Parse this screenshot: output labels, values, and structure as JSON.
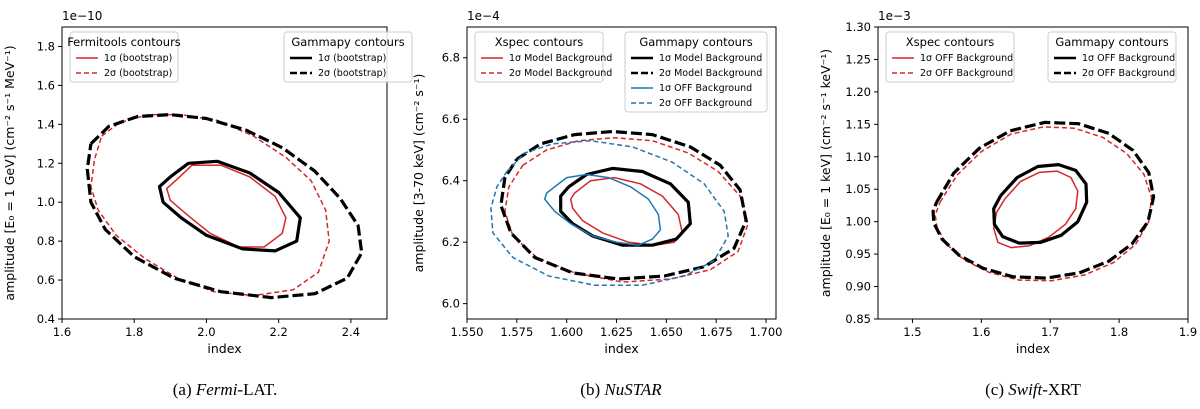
{
  "chart_data": [
    {
      "type": "line",
      "caption": {
        "label": "(a) ",
        "em": "Fermi",
        "rest": "-LAT."
      },
      "offset_text": "1e−10",
      "xlabel": "index",
      "ylabel": "amplitude [E₀ = 1 GeV] (cm⁻² s⁻¹ MeV⁻¹)",
      "xlim": [
        1.6,
        2.5
      ],
      "ylim": [
        0.4,
        1.9
      ],
      "xticks": [
        1.6,
        1.8,
        2.0,
        2.2,
        2.4
      ],
      "xticklabels": [
        "1.6",
        "1.8",
        "2.0",
        "2.2",
        "2.4"
      ],
      "yticks": [
        0.4,
        0.6,
        0.8,
        1.0,
        1.2,
        1.4,
        1.6,
        1.8
      ],
      "yticklabels": [
        "0.4",
        "0.6",
        "0.8",
        "1.0",
        "1.2",
        "1.4",
        "1.6",
        "1.8"
      ],
      "legends": [
        {
          "title": "Fermitools contours",
          "position": "top-left",
          "items": [
            {
              "label": "1σ (bootstrap)",
              "color": "#d62728",
              "dash": false,
              "weight": "thin"
            },
            {
              "label": "2σ (bootstrap)",
              "color": "#d62728",
              "dash": true,
              "weight": "thin"
            }
          ]
        },
        {
          "title": "Gammapy contours",
          "position": "top-right",
          "items": [
            {
              "label": "1σ (bootstrap)",
              "color": "#000000",
              "dash": false,
              "weight": "thick"
            },
            {
              "label": "2σ (bootstrap)",
              "color": "#000000",
              "dash": true,
              "weight": "thick"
            }
          ]
        }
      ],
      "series": [
        {
          "name": "Fermitools 1σ (bootstrap)",
          "color": "#d62728",
          "dash": false,
          "weight": "thin",
          "x": [
            1.92,
            1.96,
            2.04,
            2.12,
            2.19,
            2.22,
            2.21,
            2.16,
            2.09,
            2.01,
            1.95,
            1.9,
            1.89,
            1.92
          ],
          "y": [
            1.12,
            1.19,
            1.19,
            1.13,
            1.03,
            0.92,
            0.84,
            0.77,
            0.77,
            0.84,
            0.93,
            1.01,
            1.07,
            1.12
          ]
        },
        {
          "name": "Fermitools 2σ (bootstrap)",
          "color": "#d62728",
          "dash": true,
          "weight": "thin",
          "x": [
            1.71,
            1.76,
            1.84,
            1.93,
            2.03,
            2.13,
            2.22,
            2.29,
            2.33,
            2.34,
            2.31,
            2.24,
            2.13,
            2.02,
            1.92,
            1.83,
            1.75,
            1.7,
            1.68,
            1.69,
            1.71
          ],
          "y": [
            1.34,
            1.41,
            1.45,
            1.45,
            1.42,
            1.34,
            1.23,
            1.11,
            0.96,
            0.8,
            0.64,
            0.55,
            0.52,
            0.54,
            0.61,
            0.71,
            0.83,
            0.96,
            1.08,
            1.22,
            1.34
          ]
        },
        {
          "name": "Gammapy 1σ (bootstrap)",
          "color": "#000000",
          "dash": false,
          "weight": "thick",
          "x": [
            1.9,
            1.95,
            2.03,
            2.12,
            2.2,
            2.26,
            2.25,
            2.19,
            2.1,
            2.0,
            1.93,
            1.88,
            1.87,
            1.9
          ],
          "y": [
            1.13,
            1.2,
            1.21,
            1.15,
            1.05,
            0.92,
            0.8,
            0.75,
            0.76,
            0.83,
            0.92,
            1.0,
            1.08,
            1.13
          ]
        },
        {
          "name": "Gammapy 2σ (bootstrap)",
          "color": "#000000",
          "dash": true,
          "weight": "thick",
          "x": [
            1.68,
            1.73,
            1.81,
            1.9,
            2.0,
            2.11,
            2.21,
            2.3,
            2.37,
            2.42,
            2.43,
            2.39,
            2.3,
            2.18,
            2.04,
            1.91,
            1.8,
            1.72,
            1.68,
            1.67,
            1.68
          ],
          "y": [
            1.3,
            1.39,
            1.44,
            1.45,
            1.43,
            1.37,
            1.28,
            1.16,
            1.02,
            0.88,
            0.74,
            0.61,
            0.53,
            0.51,
            0.54,
            0.61,
            0.72,
            0.86,
            1.0,
            1.17,
            1.3
          ]
        }
      ]
    },
    {
      "type": "line",
      "caption": {
        "label": "(b) ",
        "em": "NuSTAR",
        "rest": ""
      },
      "offset_text": "1e−4",
      "xlabel": "index",
      "ylabel": "amplitude [3-70 keV] (cm⁻² s⁻¹)",
      "xlim": [
        1.55,
        1.705
      ],
      "ylim": [
        5.95,
        6.9
      ],
      "xticks": [
        1.55,
        1.575,
        1.6,
        1.625,
        1.65,
        1.675,
        1.7
      ],
      "xticklabels": [
        "1.550",
        "1.575",
        "1.600",
        "1.625",
        "1.650",
        "1.675",
        "1.700"
      ],
      "yticks": [
        6.0,
        6.2,
        6.4,
        6.6,
        6.8
      ],
      "yticklabels": [
        "6.0",
        "6.2",
        "6.4",
        "6.6",
        "6.8"
      ],
      "legends": [
        {
          "title": "Xspec contours",
          "position": "top-left",
          "items": [
            {
              "label": "1σ Model Background",
              "color": "#d62728",
              "dash": false,
              "weight": "thin"
            },
            {
              "label": "2σ Model Background",
              "color": "#d62728",
              "dash": true,
              "weight": "thin"
            }
          ]
        },
        {
          "title": "Gammapy contours",
          "position": "top-right",
          "items": [
            {
              "label": "1σ Model Background",
              "color": "#000000",
              "dash": false,
              "weight": "thick"
            },
            {
              "label": "2σ Model Background",
              "color": "#000000",
              "dash": true,
              "weight": "thick"
            },
            {
              "label": "1σ OFF Background",
              "color": "#1f77b4",
              "dash": false,
              "weight": "thin"
            },
            {
              "label": "2σ OFF Background",
              "color": "#1f77b4",
              "dash": true,
              "weight": "thin"
            }
          ]
        }
      ],
      "series": [
        {
          "name": "Xspec 1σ Model Background",
          "color": "#d62728",
          "dash": false,
          "weight": "thin",
          "x": [
            1.604,
            1.612,
            1.624,
            1.637,
            1.648,
            1.656,
            1.658,
            1.654,
            1.644,
            1.631,
            1.618,
            1.608,
            1.603,
            1.602,
            1.604
          ],
          "y": [
            6.36,
            6.4,
            6.41,
            6.39,
            6.35,
            6.29,
            6.23,
            6.2,
            6.19,
            6.2,
            6.23,
            6.27,
            6.31,
            6.34,
            6.36
          ]
        },
        {
          "name": "Xspec 2σ Model Background",
          "color": "#d62728",
          "dash": true,
          "weight": "thin",
          "x": [
            1.578,
            1.59,
            1.606,
            1.624,
            1.643,
            1.661,
            1.676,
            1.687,
            1.691,
            1.686,
            1.672,
            1.652,
            1.628,
            1.604,
            1.585,
            1.573,
            1.569,
            1.571,
            1.578
          ],
          "y": [
            6.45,
            6.5,
            6.53,
            6.54,
            6.53,
            6.49,
            6.43,
            6.35,
            6.26,
            6.17,
            6.11,
            6.08,
            6.07,
            6.1,
            6.15,
            6.22,
            6.3,
            6.38,
            6.45
          ]
        },
        {
          "name": "Gammapy 1σ Model Background",
          "color": "#000000",
          "dash": false,
          "weight": "thick",
          "x": [
            1.601,
            1.61,
            1.623,
            1.638,
            1.652,
            1.661,
            1.662,
            1.655,
            1.643,
            1.628,
            1.613,
            1.603,
            1.597,
            1.597,
            1.601
          ],
          "y": [
            6.38,
            6.42,
            6.44,
            6.43,
            6.39,
            6.33,
            6.26,
            6.21,
            6.19,
            6.19,
            6.22,
            6.26,
            6.3,
            6.35,
            6.38
          ]
        },
        {
          "name": "Gammapy 2σ Model Background",
          "color": "#000000",
          "dash": true,
          "weight": "thick",
          "x": [
            1.575,
            1.587,
            1.604,
            1.623,
            1.643,
            1.662,
            1.677,
            1.687,
            1.69,
            1.684,
            1.669,
            1.649,
            1.626,
            1.603,
            1.584,
            1.572,
            1.567,
            1.569,
            1.575
          ],
          "y": [
            6.47,
            6.52,
            6.55,
            6.56,
            6.55,
            6.51,
            6.45,
            6.37,
            6.27,
            6.18,
            6.12,
            6.09,
            6.08,
            6.1,
            6.15,
            6.23,
            6.32,
            6.41,
            6.47
          ]
        },
        {
          "name": "Gammapy 1σ OFF Background",
          "color": "#1f77b4",
          "dash": false,
          "weight": "thin",
          "x": [
            1.594,
            1.6,
            1.61,
            1.621,
            1.632,
            1.641,
            1.646,
            1.647,
            1.643,
            1.636,
            1.625,
            1.613,
            1.602,
            1.594,
            1.589,
            1.59,
            1.594
          ],
          "y": [
            6.38,
            6.41,
            6.42,
            6.41,
            6.38,
            6.34,
            6.29,
            6.24,
            6.21,
            6.19,
            6.2,
            6.22,
            6.26,
            6.3,
            6.34,
            6.36,
            6.38
          ]
        },
        {
          "name": "Gammapy 2σ OFF Background",
          "color": "#1f77b4",
          "dash": true,
          "weight": "thin",
          "x": [
            1.57,
            1.579,
            1.593,
            1.612,
            1.633,
            1.653,
            1.669,
            1.679,
            1.681,
            1.674,
            1.659,
            1.638,
            1.614,
            1.591,
            1.573,
            1.563,
            1.562,
            1.565,
            1.57
          ],
          "y": [
            6.43,
            6.49,
            6.52,
            6.53,
            6.51,
            6.46,
            6.39,
            6.3,
            6.22,
            6.14,
            6.09,
            6.06,
            6.06,
            6.09,
            6.15,
            6.23,
            6.31,
            6.38,
            6.43
          ]
        }
      ]
    },
    {
      "type": "line",
      "caption": {
        "label": "(c) ",
        "em": "Swift",
        "rest": "-XRT"
      },
      "offset_text": "1e−3",
      "xlabel": "index",
      "ylabel": "amplitude [E₀ = 1 keV] (cm⁻² s⁻¹ keV⁻¹)",
      "xlim": [
        1.45,
        1.9
      ],
      "ylim": [
        0.85,
        1.3
      ],
      "xticks": [
        1.5,
        1.6,
        1.7,
        1.8,
        1.9
      ],
      "xticklabels": [
        "1.5",
        "1.6",
        "1.7",
        "1.8",
        "1.9"
      ],
      "yticks": [
        0.85,
        0.9,
        0.95,
        1.0,
        1.05,
        1.1,
        1.15,
        1.2,
        1.25,
        1.3
      ],
      "yticklabels": [
        "0.85",
        "0.90",
        "0.95",
        "1.00",
        "1.05",
        "1.10",
        "1.15",
        "1.20",
        "1.25",
        "1.30"
      ],
      "legends": [
        {
          "title": "Xspec contours",
          "position": "top-left",
          "items": [
            {
              "label": "1σ OFF Background",
              "color": "#d62728",
              "dash": false,
              "weight": "thin"
            },
            {
              "label": "2σ OFF Background",
              "color": "#d62728",
              "dash": true,
              "weight": "thin"
            }
          ]
        },
        {
          "title": "Gammapy contours",
          "position": "top-right",
          "items": [
            {
              "label": "1σ OFF Background",
              "color": "#000000",
              "dash": false,
              "weight": "thick"
            },
            {
              "label": "2σ OFF Background",
              "color": "#000000",
              "dash": true,
              "weight": "thick"
            }
          ]
        }
      ],
      "series": [
        {
          "name": "Xspec 1σ OFF Background",
          "color": "#d62728",
          "dash": false,
          "weight": "thin",
          "x": [
            1.634,
            1.657,
            1.684,
            1.71,
            1.73,
            1.74,
            1.737,
            1.722,
            1.698,
            1.67,
            1.643,
            1.624,
            1.618,
            1.622,
            1.634
          ],
          "y": [
            1.035,
            1.062,
            1.076,
            1.078,
            1.068,
            1.047,
            1.02,
            0.996,
            0.976,
            0.963,
            0.96,
            0.968,
            0.99,
            1.014,
            1.035
          ]
        },
        {
          "name": "Xspec 2σ OFF Background",
          "color": "#d62728",
          "dash": true,
          "weight": "thin",
          "x": [
            1.54,
            1.565,
            1.6,
            1.643,
            1.69,
            1.735,
            1.776,
            1.811,
            1.836,
            1.847,
            1.843,
            1.824,
            1.792,
            1.75,
            1.702,
            1.655,
            1.611,
            1.575,
            1.55,
            1.536,
            1.533,
            1.54
          ],
          "y": [
            1.03,
            1.072,
            1.108,
            1.135,
            1.146,
            1.144,
            1.13,
            1.105,
            1.073,
            1.037,
            1.0,
            0.965,
            0.937,
            0.918,
            0.909,
            0.91,
            0.922,
            0.941,
            0.965,
            0.99,
            1.01,
            1.03
          ]
        },
        {
          "name": "Gammapy 1σ OFF Background",
          "color": "#000000",
          "dash": false,
          "weight": "thick",
          "x": [
            1.628,
            1.652,
            1.682,
            1.712,
            1.737,
            1.752,
            1.753,
            1.74,
            1.716,
            1.686,
            1.655,
            1.631,
            1.619,
            1.618,
            1.628
          ],
          "y": [
            1.04,
            1.068,
            1.085,
            1.088,
            1.079,
            1.058,
            1.03,
            1.0,
            0.979,
            0.968,
            0.967,
            0.977,
            0.996,
            1.02,
            1.04
          ]
        },
        {
          "name": "Gammapy 2σ OFF Background",
          "color": "#000000",
          "dash": true,
          "weight": "thick",
          "x": [
            1.535,
            1.56,
            1.597,
            1.642,
            1.692,
            1.741,
            1.785,
            1.82,
            1.843,
            1.85,
            1.842,
            1.819,
            1.785,
            1.742,
            1.694,
            1.646,
            1.603,
            1.568,
            1.543,
            1.531,
            1.53,
            1.535
          ],
          "y": [
            1.03,
            1.075,
            1.113,
            1.14,
            1.153,
            1.151,
            1.136,
            1.11,
            1.076,
            1.038,
            1.0,
            0.966,
            0.939,
            0.921,
            0.913,
            0.915,
            0.928,
            0.948,
            0.973,
            0.998,
            1.016,
            1.03
          ]
        }
      ]
    }
  ]
}
